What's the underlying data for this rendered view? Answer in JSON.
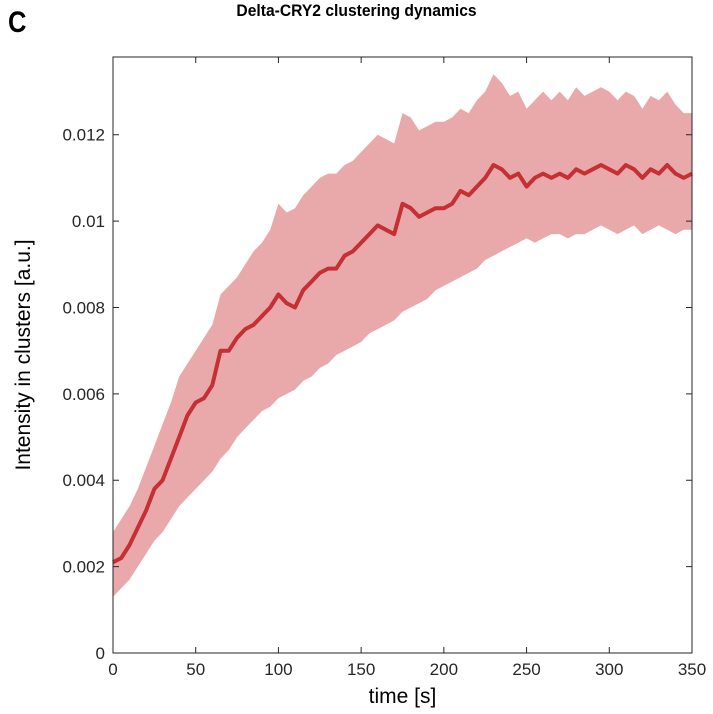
{
  "panel_label": "C",
  "chart_data": {
    "type": "line",
    "title": "Delta-CRY2 clustering dynamics",
    "xlabel": "time [s]",
    "ylabel": "Intensity in clusters [a.u.]",
    "xlim": [
      0,
      350
    ],
    "ylim": [
      0,
      0.0138
    ],
    "xticks": [
      0,
      50,
      100,
      150,
      200,
      250,
      300,
      350
    ],
    "xtick_labels": [
      "0",
      "50",
      "100",
      "150",
      "200",
      "250",
      "300",
      "350"
    ],
    "yticks": [
      0,
      0.002,
      0.004,
      0.006,
      0.008,
      0.01,
      0.012
    ],
    "ytick_labels": [
      "0",
      "0.002",
      "0.004",
      "0.006",
      "0.008",
      "0.01",
      "0.012"
    ],
    "grid": false,
    "colors": {
      "line": "#c62f33",
      "band": "#e9a9aa"
    },
    "series": [
      {
        "x": [
          0,
          5,
          10,
          15,
          20,
          25,
          30,
          35,
          40,
          45,
          50,
          55,
          60,
          65,
          70,
          75,
          80,
          85,
          90,
          95,
          100,
          105,
          110,
          115,
          120,
          125,
          130,
          135,
          140,
          145,
          150,
          155,
          160,
          165,
          170,
          175,
          180,
          185,
          190,
          195,
          200,
          205,
          210,
          215,
          220,
          225,
          230,
          235,
          240,
          245,
          250,
          255,
          260,
          265,
          270,
          275,
          280,
          285,
          290,
          295,
          300,
          305,
          310,
          315,
          320,
          325,
          330,
          335,
          340,
          345,
          350
        ],
        "y": [
          0.0021,
          0.0022,
          0.0025,
          0.0029,
          0.0033,
          0.0038,
          0.004,
          0.0045,
          0.005,
          0.0055,
          0.0058,
          0.0059,
          0.0062,
          0.007,
          0.007,
          0.0073,
          0.0075,
          0.0076,
          0.0078,
          0.008,
          0.0083,
          0.0081,
          0.008,
          0.0084,
          0.0086,
          0.0088,
          0.0089,
          0.0089,
          0.0092,
          0.0093,
          0.0095,
          0.0097,
          0.0099,
          0.0098,
          0.0097,
          0.0104,
          0.0103,
          0.0101,
          0.0102,
          0.0103,
          0.0103,
          0.0104,
          0.0107,
          0.0106,
          0.0108,
          0.011,
          0.0113,
          0.0112,
          0.011,
          0.0111,
          0.0108,
          0.011,
          0.0111,
          0.011,
          0.0111,
          0.011,
          0.0112,
          0.0111,
          0.0112,
          0.0113,
          0.0112,
          0.0111,
          0.0113,
          0.0112,
          0.011,
          0.0112,
          0.0111,
          0.0113,
          0.0111,
          0.011,
          0.0111
        ],
        "lower": [
          0.0013,
          0.0015,
          0.0017,
          0.002,
          0.0023,
          0.0026,
          0.0028,
          0.0031,
          0.0034,
          0.0036,
          0.0038,
          0.004,
          0.0042,
          0.0045,
          0.0047,
          0.005,
          0.0052,
          0.0054,
          0.0056,
          0.0057,
          0.0059,
          0.006,
          0.0061,
          0.0063,
          0.0064,
          0.0066,
          0.0067,
          0.0069,
          0.007,
          0.0071,
          0.0072,
          0.0074,
          0.0075,
          0.0076,
          0.0077,
          0.0079,
          0.008,
          0.0081,
          0.0082,
          0.0084,
          0.0085,
          0.0086,
          0.0087,
          0.0088,
          0.0089,
          0.0091,
          0.0092,
          0.0093,
          0.0094,
          0.0095,
          0.0096,
          0.0095,
          0.0096,
          0.0097,
          0.0097,
          0.0096,
          0.0097,
          0.0097,
          0.0098,
          0.0099,
          0.0098,
          0.0097,
          0.0098,
          0.0099,
          0.0097,
          0.0098,
          0.0099,
          0.0098,
          0.0097,
          0.0098,
          0.0098
        ],
        "upper": [
          0.0028,
          0.0031,
          0.0034,
          0.0038,
          0.0043,
          0.0048,
          0.0053,
          0.0058,
          0.0064,
          0.0067,
          0.007,
          0.0073,
          0.0076,
          0.0083,
          0.0085,
          0.0087,
          0.009,
          0.0093,
          0.0095,
          0.0098,
          0.0104,
          0.0102,
          0.0103,
          0.0106,
          0.0108,
          0.011,
          0.0111,
          0.0111,
          0.0113,
          0.0114,
          0.0116,
          0.0118,
          0.012,
          0.0119,
          0.0118,
          0.0125,
          0.0124,
          0.0121,
          0.0122,
          0.0123,
          0.0123,
          0.0124,
          0.0126,
          0.0125,
          0.0128,
          0.013,
          0.0134,
          0.0132,
          0.0129,
          0.013,
          0.0126,
          0.0128,
          0.013,
          0.0128,
          0.013,
          0.0128,
          0.0131,
          0.0129,
          0.013,
          0.0131,
          0.013,
          0.0128,
          0.013,
          0.0129,
          0.0126,
          0.0129,
          0.0128,
          0.013,
          0.0127,
          0.0125,
          0.0125
        ]
      }
    ]
  }
}
